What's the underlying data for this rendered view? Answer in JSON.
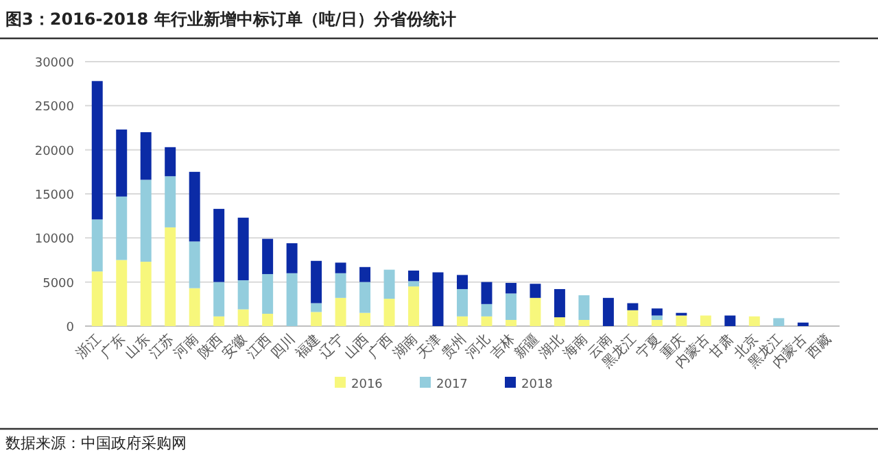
{
  "chart_data": {
    "type": "bar",
    "stacked": true,
    "title": "图3：2016-2018 年行业新增中标订单（吨/日）分省份统计",
    "categories": [
      "浙江",
      "广东",
      "山东",
      "江苏",
      "河南",
      "陕西",
      "安徽",
      "江西",
      "四川",
      "福建",
      "辽宁",
      "山西",
      "广西",
      "湖南",
      "天津",
      "贵州",
      "河北",
      "吉林",
      "新疆",
      "湖北",
      "海南",
      "云南",
      "黑龙江",
      "宁夏",
      "重庆",
      "内蒙古",
      "甘肃",
      "北京",
      "黑龙江",
      "内蒙古",
      "西藏"
    ],
    "series": [
      {
        "name": "2016",
        "color": "#f7f77c",
        "values": [
          6200,
          7500,
          7300,
          11200,
          4300,
          1100,
          1900,
          1400,
          0,
          1600,
          3200,
          1500,
          3100,
          4500,
          0,
          1100,
          1100,
          700,
          3200,
          1000,
          700,
          0,
          1800,
          700,
          1200,
          1200,
          0,
          1100,
          0,
          0,
          0
        ]
      },
      {
        "name": "2017",
        "color": "#93cddd",
        "values": [
          5900,
          7200,
          9300,
          5800,
          5300,
          3900,
          3300,
          4500,
          6000,
          1000,
          2800,
          3500,
          3300,
          600,
          0,
          3100,
          1400,
          3000,
          0,
          0,
          2800,
          0,
          0,
          500,
          0,
          0,
          0,
          0,
          900,
          0,
          0
        ]
      },
      {
        "name": "2018",
        "color": "#0b2ba6",
        "values": [
          15700,
          7600,
          5400,
          3300,
          7900,
          8300,
          7100,
          4000,
          3400,
          4800,
          1200,
          1700,
          0,
          1200,
          6100,
          1600,
          2500,
          1200,
          1600,
          3200,
          0,
          3200,
          800,
          800,
          300,
          0,
          1200,
          0,
          0,
          400,
          0
        ]
      }
    ],
    "ylim": [
      0,
      30000
    ],
    "yticks": [
      0,
      5000,
      10000,
      15000,
      20000,
      25000,
      30000
    ],
    "grid": "y",
    "legend": "bottom",
    "annotations": [
      "数据来源：中国政府采购网"
    ]
  }
}
